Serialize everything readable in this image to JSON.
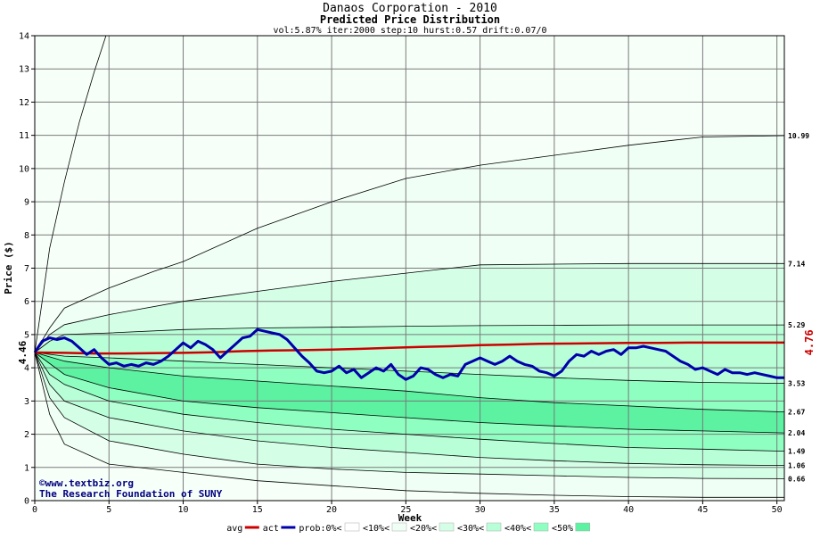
{
  "chart_data": {
    "type": "area",
    "title": "Danaos Corporation - 2010",
    "subtitle": "Predicted Price Distribution",
    "params": "vol:5.87% iter:2000 step:10 hurst:0.57 drift:0.07/0",
    "xlabel": "Week",
    "ylabel": "Price ($)",
    "xlim": [
      0,
      50.5
    ],
    "ylim": [
      0,
      14
    ],
    "xticks": [
      0,
      5,
      10,
      15,
      20,
      25,
      30,
      35,
      40,
      45,
      50
    ],
    "yticks": [
      0,
      1,
      2,
      3,
      4,
      5,
      6,
      7,
      8,
      9,
      10,
      11,
      12,
      13,
      14
    ],
    "grid": true,
    "start_label": "4.46",
    "end_label": "4.76",
    "watermark_lines": [
      "©www.textbiz.org",
      "The Research Foundation of SUNY"
    ],
    "right_labels": [
      {
        "text": "10.99",
        "value": 10.99
      },
      {
        "text": "7.14",
        "value": 7.14
      },
      {
        "text": "5.29",
        "value": 5.29
      },
      {
        "text": "3.53",
        "value": 3.53
      },
      {
        "text": "2.67",
        "value": 2.67
      },
      {
        "text": "2.04",
        "value": 2.04
      },
      {
        "text": "1.49",
        "value": 1.49
      },
      {
        "text": "1.06",
        "value": 1.06
      },
      {
        "text": "0.66",
        "value": 0.66
      }
    ],
    "bands": [
      {
        "name": "<10%",
        "color": "#f0fff5",
        "upper": [
          [
            0,
            4.46
          ],
          [
            1,
            5.2
          ],
          [
            2,
            5.8
          ],
          [
            5,
            6.4
          ],
          [
            8,
            6.9
          ],
          [
            10,
            7.2
          ],
          [
            15,
            8.2
          ],
          [
            20,
            9.0
          ],
          [
            25,
            9.7
          ],
          [
            30,
            10.1
          ],
          [
            35,
            10.4
          ],
          [
            40,
            10.7
          ],
          [
            45,
            10.95
          ],
          [
            50.5,
            10.99
          ]
        ],
        "lower": [
          [
            0,
            4.46
          ],
          [
            1,
            2.6
          ],
          [
            2,
            1.7
          ],
          [
            5,
            1.1
          ],
          [
            10,
            0.85
          ],
          [
            15,
            0.6
          ],
          [
            20,
            0.45
          ],
          [
            25,
            0.3
          ],
          [
            30,
            0.22
          ],
          [
            35,
            0.16
          ],
          [
            40,
            0.12
          ],
          [
            45,
            0.1
          ],
          [
            50.5,
            0.1
          ]
        ]
      },
      {
        "name": "<20%",
        "color": "#d4ffe6",
        "upper": [
          [
            0,
            4.46
          ],
          [
            1,
            5.0
          ],
          [
            2,
            5.3
          ],
          [
            5,
            5.6
          ],
          [
            10,
            6.0
          ],
          [
            15,
            6.3
          ],
          [
            20,
            6.6
          ],
          [
            25,
            6.85
          ],
          [
            30,
            7.1
          ],
          [
            35,
            7.12
          ],
          [
            40,
            7.14
          ],
          [
            45,
            7.14
          ],
          [
            50.5,
            7.14
          ]
        ],
        "lower": [
          [
            0,
            4.46
          ],
          [
            1,
            3.1
          ],
          [
            2,
            2.5
          ],
          [
            5,
            1.8
          ],
          [
            10,
            1.4
          ],
          [
            15,
            1.1
          ],
          [
            20,
            0.95
          ],
          [
            25,
            0.85
          ],
          [
            30,
            0.8
          ],
          [
            35,
            0.75
          ],
          [
            40,
            0.7
          ],
          [
            45,
            0.67
          ],
          [
            50.5,
            0.66
          ]
        ]
      },
      {
        "name": "<30%",
        "color": "#b8ffd8",
        "upper": [
          [
            0,
            4.46
          ],
          [
            1,
            4.8
          ],
          [
            2,
            5.0
          ],
          [
            5,
            5.05
          ],
          [
            10,
            5.15
          ],
          [
            15,
            5.2
          ],
          [
            20,
            5.22
          ],
          [
            25,
            5.25
          ],
          [
            30,
            5.27
          ],
          [
            35,
            5.28
          ],
          [
            40,
            5.29
          ],
          [
            50.5,
            5.29
          ]
        ],
        "lower": [
          [
            0,
            4.46
          ],
          [
            1,
            3.5
          ],
          [
            2,
            3.0
          ],
          [
            5,
            2.5
          ],
          [
            10,
            2.1
          ],
          [
            15,
            1.8
          ],
          [
            20,
            1.6
          ],
          [
            25,
            1.45
          ],
          [
            30,
            1.3
          ],
          [
            35,
            1.2
          ],
          [
            40,
            1.12
          ],
          [
            45,
            1.08
          ],
          [
            50.5,
            1.06
          ]
        ]
      },
      {
        "name": "<40%",
        "color": "#8effc0",
        "upper": [
          [
            0,
            4.46
          ],
          [
            2,
            4.35
          ],
          [
            5,
            4.3
          ],
          [
            10,
            4.2
          ],
          [
            15,
            4.1
          ],
          [
            20,
            4.0
          ],
          [
            25,
            3.9
          ],
          [
            30,
            3.8
          ],
          [
            35,
            3.7
          ],
          [
            40,
            3.62
          ],
          [
            45,
            3.56
          ],
          [
            50.5,
            3.53
          ]
        ],
        "lower": [
          [
            0,
            4.46
          ],
          [
            1,
            3.8
          ],
          [
            2,
            3.5
          ],
          [
            5,
            3.0
          ],
          [
            10,
            2.6
          ],
          [
            15,
            2.35
          ],
          [
            20,
            2.15
          ],
          [
            25,
            2.0
          ],
          [
            30,
            1.85
          ],
          [
            35,
            1.72
          ],
          [
            40,
            1.6
          ],
          [
            45,
            1.55
          ],
          [
            50.5,
            1.49
          ]
        ]
      },
      {
        "name": "<50%",
        "color": "#5cf2a2",
        "upper": [
          [
            0,
            4.46
          ],
          [
            2,
            4.2
          ],
          [
            5,
            4.0
          ],
          [
            10,
            3.75
          ],
          [
            15,
            3.6
          ],
          [
            20,
            3.45
          ],
          [
            25,
            3.3
          ],
          [
            30,
            3.1
          ],
          [
            35,
            2.95
          ],
          [
            40,
            2.85
          ],
          [
            45,
            2.75
          ],
          [
            50.5,
            2.67
          ]
        ],
        "lower": [
          [
            0,
            4.46
          ],
          [
            2,
            3.8
          ],
          [
            5,
            3.4
          ],
          [
            10,
            3.0
          ],
          [
            15,
            2.8
          ],
          [
            20,
            2.65
          ],
          [
            25,
            2.5
          ],
          [
            30,
            2.35
          ],
          [
            35,
            2.25
          ],
          [
            40,
            2.15
          ],
          [
            45,
            2.1
          ],
          [
            50.5,
            2.04
          ]
        ]
      }
    ],
    "outer_curves": {
      "upper": [
        [
          0,
          4.46
        ],
        [
          0.5,
          6.0
        ],
        [
          1,
          7.6
        ],
        [
          2,
          9.6
        ],
        [
          3,
          11.4
        ],
        [
          4,
          12.9
        ],
        [
          4.8,
          14.0
        ]
      ]
    },
    "series": [
      {
        "name": "avg",
        "color": "#cc0000",
        "x": [
          0,
          2,
          4,
          6,
          8,
          10,
          12,
          14,
          16,
          18,
          20,
          22,
          24,
          26,
          28,
          30,
          32,
          34,
          36,
          38,
          40,
          42,
          44,
          46,
          48,
          50.5
        ],
        "y": [
          4.46,
          4.45,
          4.43,
          4.43,
          4.44,
          4.45,
          4.47,
          4.5,
          4.52,
          4.53,
          4.55,
          4.57,
          4.6,
          4.63,
          4.65,
          4.68,
          4.7,
          4.72,
          4.73,
          4.74,
          4.75,
          4.75,
          4.76,
          4.76,
          4.76,
          4.76
        ]
      },
      {
        "name": "act",
        "color": "#0000aa",
        "x": [
          0,
          0.5,
          1,
          1.5,
          2,
          2.5,
          3,
          3.5,
          4,
          4.5,
          5,
          5.5,
          6,
          6.5,
          7,
          7.5,
          8,
          8.5,
          9,
          9.5,
          10,
          10.5,
          11,
          11.5,
          12,
          12.5,
          13,
          13.5,
          14,
          14.5,
          15,
          15.5,
          16,
          16.5,
          17,
          17.5,
          18,
          18.5,
          19,
          19.5,
          20,
          20.5,
          21,
          21.5,
          22,
          22.5,
          23,
          23.5,
          24,
          24.5,
          25,
          25.5,
          26,
          26.5,
          27,
          27.5,
          28,
          28.5,
          29,
          29.5,
          30,
          30.5,
          31,
          31.5,
          32,
          32.5,
          33,
          33.5,
          34,
          34.5,
          35,
          35.5,
          36,
          36.5,
          37,
          37.5,
          38,
          38.5,
          39,
          39.5,
          40,
          40.5,
          41,
          41.5,
          42,
          42.5,
          43,
          43.5,
          44,
          44.5,
          45,
          45.5,
          46,
          46.5,
          47,
          47.5,
          48,
          48.5,
          49,
          49.5,
          50,
          50.5
        ],
        "y": [
          4.46,
          4.8,
          4.9,
          4.85,
          4.9,
          4.8,
          4.6,
          4.4,
          4.55,
          4.3,
          4.1,
          4.15,
          4.05,
          4.1,
          4.05,
          4.15,
          4.1,
          4.2,
          4.35,
          4.55,
          4.75,
          4.6,
          4.8,
          4.7,
          4.55,
          4.3,
          4.5,
          4.7,
          4.9,
          4.95,
          5.15,
          5.1,
          5.05,
          5.0,
          4.85,
          4.6,
          4.35,
          4.15,
          3.9,
          3.85,
          3.9,
          4.05,
          3.85,
          3.95,
          3.7,
          3.85,
          4.0,
          3.9,
          4.1,
          3.8,
          3.65,
          3.75,
          4.0,
          3.95,
          3.8,
          3.7,
          3.8,
          3.75,
          4.1,
          4.2,
          4.3,
          4.2,
          4.1,
          4.2,
          4.35,
          4.2,
          4.1,
          4.05,
          3.9,
          3.85,
          3.75,
          3.9,
          4.2,
          4.4,
          4.35,
          4.5,
          4.4,
          4.5,
          4.55,
          4.4,
          4.6,
          4.6,
          4.65,
          4.6,
          4.55,
          4.5,
          4.35,
          4.2,
          4.1,
          3.95,
          4.0,
          3.9,
          3.8,
          3.95,
          3.85,
          3.85,
          3.8,
          3.85,
          3.8,
          3.75,
          3.7,
          3.7
        ]
      }
    ],
    "legend": {
      "placement": "bottom",
      "items": [
        {
          "label": "avg",
          "kind": "line",
          "color": "#cc0000"
        },
        {
          "label": "act",
          "kind": "line",
          "color": "#0000aa"
        },
        {
          "label": "prob:0%<",
          "kind": "swatch",
          "color": "#ffffff"
        },
        {
          "label": "<10%<",
          "kind": "swatch",
          "color": "#f0fff5"
        },
        {
          "label": "<20%<",
          "kind": "swatch",
          "color": "#d4ffe6"
        },
        {
          "label": "<30%<",
          "kind": "swatch",
          "color": "#b8ffd8"
        },
        {
          "label": "<40%<",
          "kind": "swatch",
          "color": "#8effc0"
        },
        {
          "label": "<50%",
          "kind": "swatch",
          "color": "#5cf2a2"
        }
      ]
    }
  }
}
